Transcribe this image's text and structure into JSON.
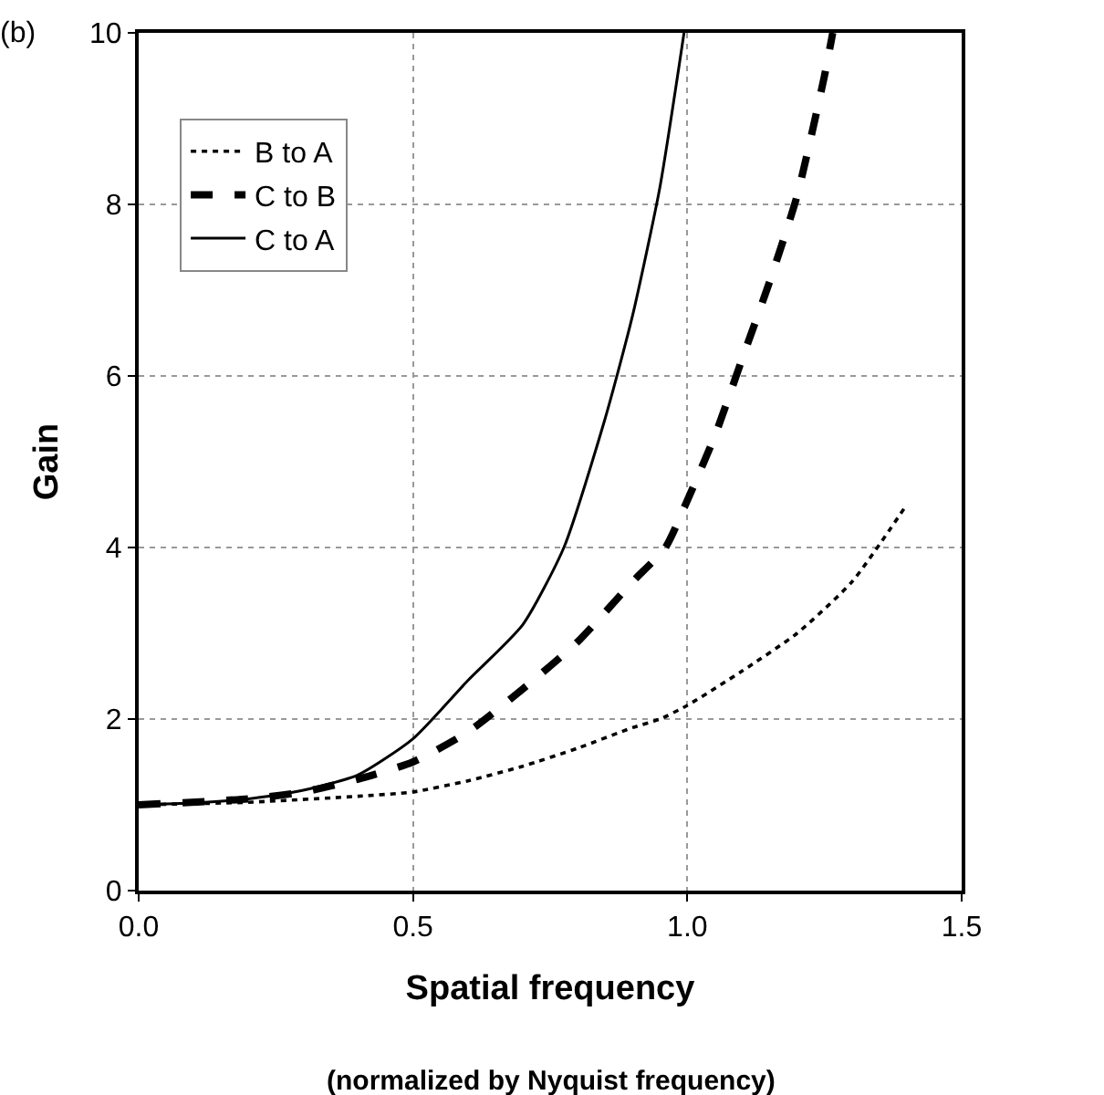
{
  "chart_data": {
    "type": "line",
    "xlabel": "Spatial frequency",
    "ylabel": "Gain",
    "annotations": [
      "(b)",
      "(normalized by Nyquist frequency)"
    ],
    "xlim": [
      0,
      1.5
    ],
    "xticks": [
      {
        "value": 0,
        "label": "0.0"
      },
      0.5,
      {
        "value": 1,
        "label": "1.0"
      },
      1.5
    ],
    "ylim": [
      0,
      10
    ],
    "yticks": [
      0,
      2,
      4,
      6,
      8,
      10
    ],
    "grid": true,
    "legend": "top left",
    "marker": "none",
    "series": [
      {
        "name": "B to A",
        "color": "#000000",
        "line_style": "dotted",
        "x": [
          0,
          0.2,
          0.4,
          0.5,
          0.6,
          0.7,
          0.8,
          0.9,
          0.95,
          1.0,
          1.1,
          1.2,
          1.3,
          1.4
        ],
        "values": [
          1,
          1.03,
          1.1,
          1.15,
          1.28,
          1.45,
          1.66,
          1.9,
          2.0,
          2.16,
          2.56,
          3.0,
          3.6,
          4.5
        ]
      },
      {
        "name": "C to B",
        "color": "#000000",
        "line_style": "dashed",
        "x": [
          0,
          0.2,
          0.3,
          0.4,
          0.5,
          0.6,
          0.7,
          0.8,
          0.9,
          0.96,
          1.0,
          1.05,
          1.1,
          1.15,
          1.2,
          1.25,
          1.265
        ],
        "values": [
          1,
          1.07,
          1.15,
          1.3,
          1.5,
          1.85,
          2.35,
          2.9,
          3.6,
          4.0,
          4.55,
          5.3,
          6.2,
          7.1,
          8.1,
          9.5,
          10
        ]
      },
      {
        "name": "C to A",
        "color": "#000000",
        "line_style": "solid",
        "x": [
          0,
          0.1,
          0.2,
          0.3,
          0.4,
          0.5,
          0.6,
          0.7,
          0.775,
          0.85,
          0.9,
          0.95,
          0.994
        ],
        "values": [
          1,
          1.02,
          1.07,
          1.17,
          1.35,
          1.77,
          2.45,
          3.1,
          4.0,
          5.5,
          6.7,
          8.2,
          10
        ]
      }
    ]
  }
}
